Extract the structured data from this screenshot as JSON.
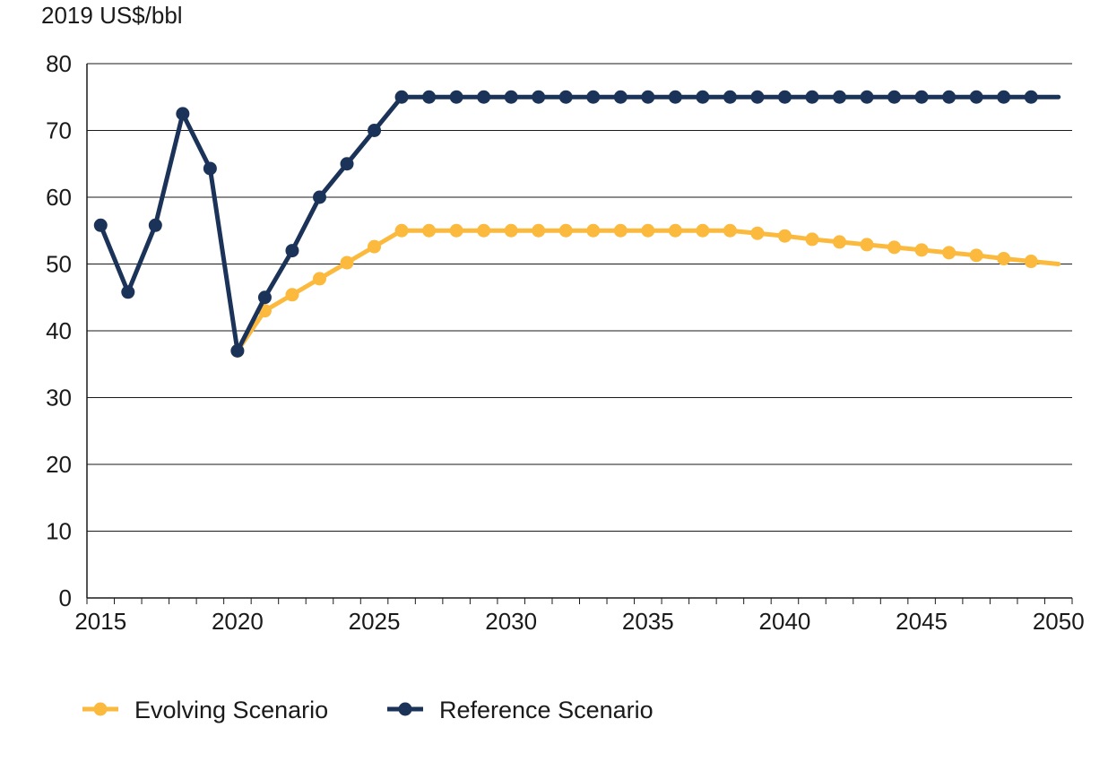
{
  "chart_data": {
    "type": "line",
    "unit_label": "2019 US$/bbl",
    "x_ticks": [
      2015,
      2020,
      2025,
      2030,
      2035,
      2040,
      2045,
      2050
    ],
    "y_ticks": [
      0,
      10,
      20,
      30,
      40,
      50,
      60,
      70,
      80
    ],
    "xlim": [
      2014.5,
      2050.5
    ],
    "ylim": [
      0,
      80
    ],
    "grid": "horizontal",
    "legend_position": "bottom",
    "series": [
      {
        "name": "Evolving Scenario",
        "color": "#FBBA3D",
        "x": [
          2020,
          2021,
          2022,
          2023,
          2024,
          2025,
          2026,
          2027,
          2028,
          2029,
          2030,
          2031,
          2032,
          2033,
          2034,
          2035,
          2036,
          2037,
          2038,
          2039,
          2040,
          2041,
          2042,
          2043,
          2044,
          2045,
          2046,
          2047,
          2048,
          2049,
          2050
        ],
        "values": [
          37.0,
          43.0,
          45.4,
          47.8,
          50.2,
          52.6,
          55.0,
          55.0,
          55.0,
          55.0,
          55.0,
          55.0,
          55.0,
          55.0,
          55.0,
          55.0,
          55.0,
          55.0,
          55.0,
          54.6,
          54.2,
          53.7,
          53.3,
          52.9,
          52.5,
          52.1,
          51.7,
          51.3,
          50.8,
          50.4,
          50.0
        ],
        "markers_until": 2049
      },
      {
        "name": "Reference Scenario",
        "color": "#1B3358",
        "x": [
          2015,
          2016,
          2017,
          2018,
          2019,
          2020,
          2021,
          2022,
          2023,
          2024,
          2025,
          2026,
          2027,
          2028,
          2029,
          2030,
          2031,
          2032,
          2033,
          2034,
          2035,
          2036,
          2037,
          2038,
          2039,
          2040,
          2041,
          2042,
          2043,
          2044,
          2045,
          2046,
          2047,
          2048,
          2049,
          2050
        ],
        "values": [
          55.8,
          45.8,
          55.8,
          72.5,
          64.3,
          37.0,
          45.0,
          52.0,
          60.0,
          65.0,
          70.0,
          75.0,
          75.0,
          75.0,
          75.0,
          75.0,
          75.0,
          75.0,
          75.0,
          75.0,
          75.0,
          75.0,
          75.0,
          75.0,
          75.0,
          75.0,
          75.0,
          75.0,
          75.0,
          75.0,
          75.0,
          75.0,
          75.0,
          75.0,
          75.0,
          75.0
        ],
        "markers_until": 2049
      }
    ]
  }
}
